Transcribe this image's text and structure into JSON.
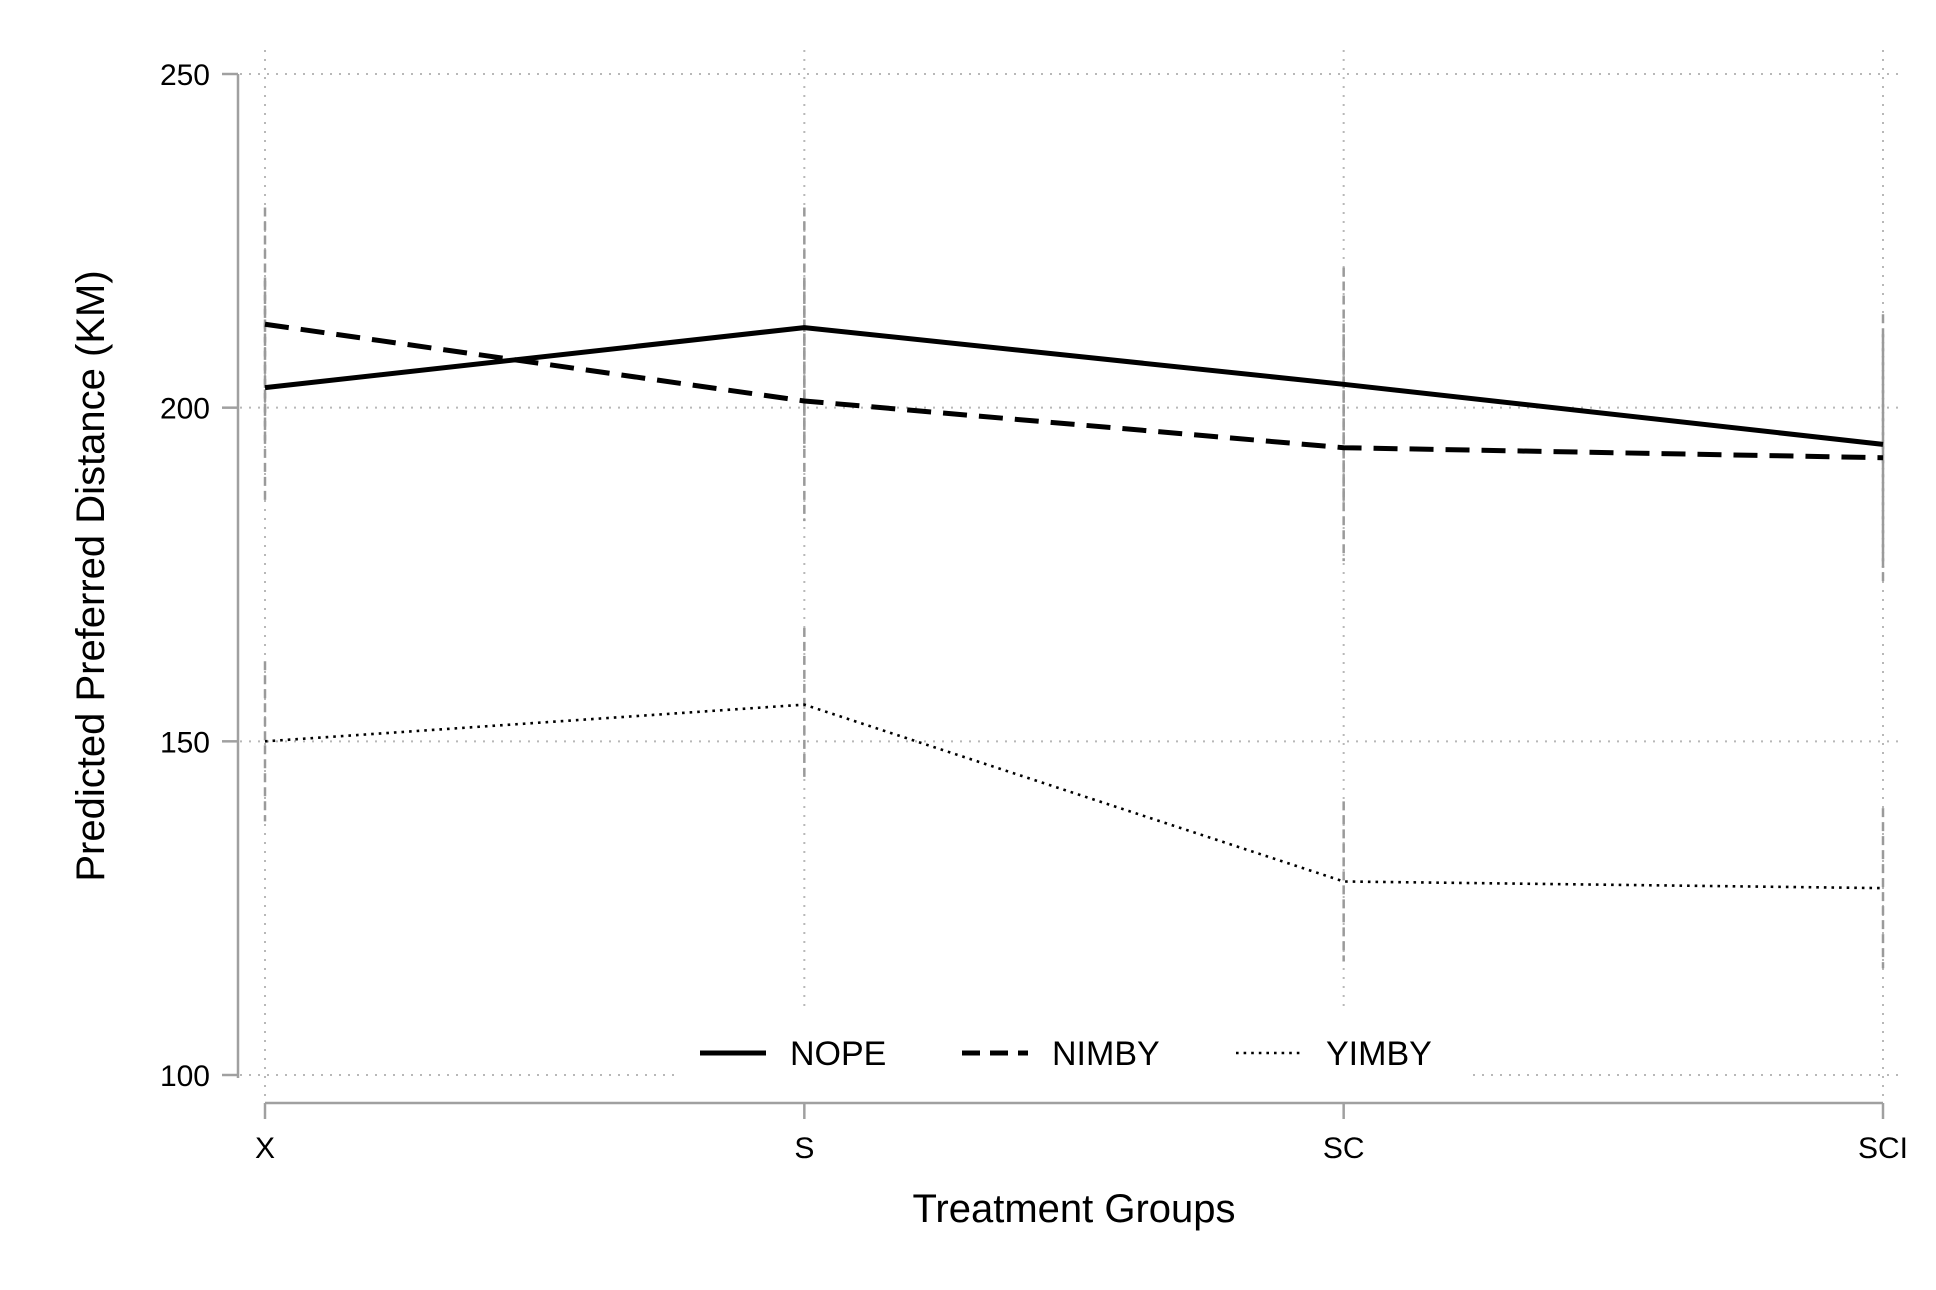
{
  "chart_data": {
    "type": "line",
    "title": "",
    "xlabel": "Treatment Groups",
    "ylabel": "Predicted Preferred Distance (KM)",
    "categories": [
      "X",
      "S",
      "SC",
      "SCI"
    ],
    "ylim": [
      100,
      250
    ],
    "yticks": [
      100,
      150,
      200,
      250
    ],
    "grid": true,
    "legend_position": "bottom-center inside",
    "series": [
      {
        "name": "NOPE",
        "style": "solid",
        "color": "#000000",
        "values": [
          203,
          212,
          203.5,
          194.5
        ],
        "ci_low": [
          186,
          194,
          186,
          176
        ],
        "ci_high": [
          219,
          230,
          221,
          214
        ]
      },
      {
        "name": "NIMBY",
        "style": "dashed",
        "color": "#000000",
        "values": [
          212.5,
          201,
          194,
          192.5
        ],
        "ci_low": [
          195,
          183,
          177,
          174
        ],
        "ci_high": [
          230,
          219,
          211,
          211
        ]
      },
      {
        "name": "YIMBY",
        "style": "dotted",
        "color": "#000000",
        "values": [
          150,
          155.5,
          129,
          128
        ],
        "ci_low": [
          138,
          144,
          117,
          116
        ],
        "ci_high": [
          162,
          167,
          141,
          140
        ]
      }
    ]
  }
}
